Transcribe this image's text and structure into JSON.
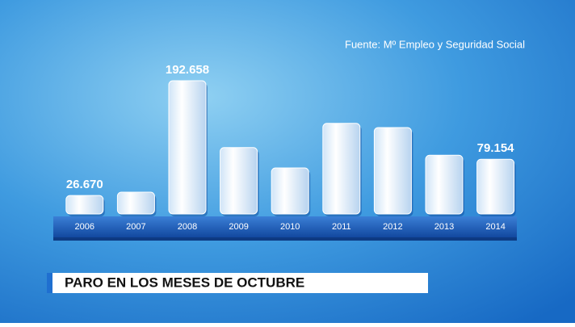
{
  "chart_data": {
    "type": "bar",
    "title": "PARO EN LOS MESES DE OCTUBRE",
    "source": "Fuente: Mº Empleo y Seguridad Social",
    "categories": [
      "2006",
      "2007",
      "2008",
      "2009",
      "2010",
      "2011",
      "2012",
      "2013",
      "2014"
    ],
    "values": [
      26670,
      31500,
      192658,
      96000,
      66500,
      131000,
      125000,
      85000,
      79154
    ],
    "value_labels": [
      "26.670",
      null,
      "192.658",
      null,
      null,
      null,
      null,
      null,
      "79.154"
    ],
    "color": "#ffffff"
  }
}
